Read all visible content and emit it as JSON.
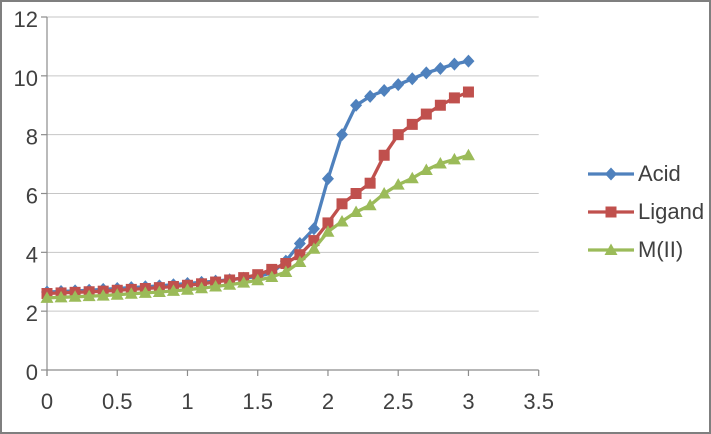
{
  "window": {
    "background": "#FFFFFF",
    "border_color": "#7F7F7F"
  },
  "chart_data": {
    "type": "line",
    "title": "",
    "xlabel": "",
    "ylabel": "",
    "xlim": [
      0,
      3.5
    ],
    "ylim": [
      0,
      12
    ],
    "xticks": [
      0,
      0.5,
      1,
      1.5,
      2,
      2.5,
      3,
      3.5
    ],
    "yticks": [
      0,
      2,
      4,
      6,
      8,
      10,
      12
    ],
    "grid": "horizontal",
    "legend_position": "right",
    "axis_color": "#8C8C8C",
    "gridline_color": "#C6C6C6",
    "tick_label_color": "#404040",
    "legend_text_color": "#404040",
    "x": [
      0,
      0.1,
      0.2,
      0.3,
      0.4,
      0.5,
      0.6,
      0.7,
      0.8,
      0.9,
      1.0,
      1.1,
      1.2,
      1.3,
      1.4,
      1.5,
      1.6,
      1.7,
      1.8,
      1.9,
      2.0,
      2.1,
      2.2,
      2.3,
      2.4,
      2.5,
      2.6,
      2.7,
      2.8,
      2.9,
      3.0
    ],
    "series": [
      {
        "name": "Acid",
        "color": "#4F81BD",
        "marker": "diamond",
        "values": [
          2.65,
          2.67,
          2.69,
          2.71,
          2.74,
          2.77,
          2.8,
          2.83,
          2.86,
          2.9,
          2.94,
          2.98,
          3.02,
          3.07,
          3.12,
          3.18,
          3.3,
          3.7,
          4.3,
          4.8,
          6.5,
          8.0,
          9.0,
          9.3,
          9.5,
          9.7,
          9.9,
          10.1,
          10.25,
          10.4,
          10.5
        ]
      },
      {
        "name": "Ligand",
        "color": "#C0504D",
        "marker": "square",
        "values": [
          2.6,
          2.62,
          2.64,
          2.66,
          2.68,
          2.71,
          2.74,
          2.77,
          2.8,
          2.84,
          2.88,
          2.93,
          2.99,
          3.06,
          3.14,
          3.24,
          3.42,
          3.62,
          3.92,
          4.4,
          5.0,
          5.65,
          6.0,
          6.35,
          7.3,
          8.0,
          8.35,
          8.7,
          9.0,
          9.25,
          9.45
        ]
      },
      {
        "name": "M(II)",
        "color": "#9BBB59",
        "marker": "triangle",
        "values": [
          2.45,
          2.47,
          2.49,
          2.51,
          2.53,
          2.56,
          2.59,
          2.62,
          2.65,
          2.69,
          2.73,
          2.78,
          2.84,
          2.9,
          2.97,
          3.05,
          3.16,
          3.33,
          3.67,
          4.12,
          4.7,
          5.05,
          5.37,
          5.6,
          6.0,
          6.3,
          6.52,
          6.8,
          7.02,
          7.16,
          7.3
        ]
      }
    ]
  }
}
